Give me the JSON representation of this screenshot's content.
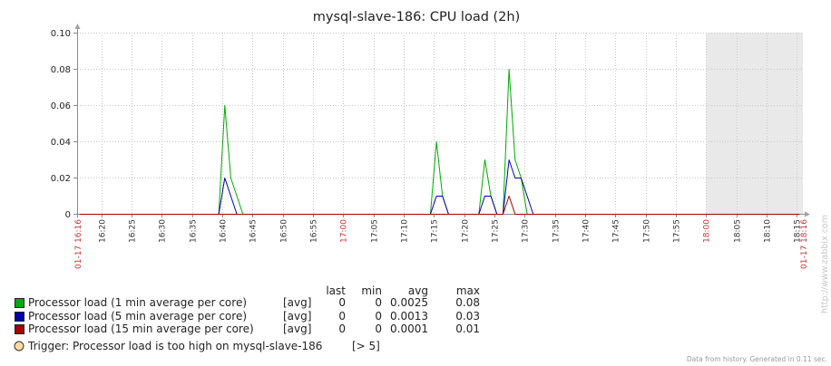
{
  "chart_data": {
    "type": "line",
    "title": "mysql-slave-186: CPU load (2h)",
    "xlim": [
      "01-17 16:16",
      "01-17 18:16"
    ],
    "x_ticks": [
      "16:20",
      "16:25",
      "16:30",
      "16:35",
      "16:40",
      "16:45",
      "16:50",
      "16:55",
      "17:00",
      "17:05",
      "17:10",
      "17:15",
      "17:20",
      "17:25",
      "17:30",
      "17:35",
      "17:40",
      "17:45",
      "17:50",
      "17:55",
      "18:00",
      "18:05",
      "18:10",
      "18:15"
    ],
    "ylim": [
      0,
      0.1
    ],
    "y_ticks": [
      "0.10",
      "0.08",
      "0.06",
      "0.04",
      "0.02",
      "0"
    ],
    "grid": true,
    "shaded_range": [
      "18:00",
      "18:16"
    ],
    "legend_position": "bottom-left",
    "legend_headers": [
      "last",
      "min",
      "avg",
      "max"
    ],
    "series": [
      {
        "name": "Processor load (1 min average per core)",
        "color": "#00aa00",
        "function": "[avg]",
        "last": "0",
        "min": "0",
        "avg": "0.0025",
        "max": "0.08",
        "points": [
          [
            "16:16:25",
            0
          ],
          [
            "16:39:25",
            0
          ],
          [
            "16:40:25",
            0.06
          ],
          [
            "16:41:25",
            0.02
          ],
          [
            "16:42:25",
            0.01
          ],
          [
            "16:43:25",
            0
          ],
          [
            "17:14:25",
            0
          ],
          [
            "17:15:25",
            0.04
          ],
          [
            "17:16:25",
            0.01
          ],
          [
            "17:17:25",
            0
          ],
          [
            "17:22:25",
            0
          ],
          [
            "17:23:25",
            0.03
          ],
          [
            "17:24:25",
            0.01
          ],
          [
            "17:25:25",
            0
          ],
          [
            "17:26:25",
            0
          ],
          [
            "17:27:25",
            0.08
          ],
          [
            "17:28:25",
            0.03
          ],
          [
            "17:29:25",
            0.02
          ],
          [
            "17:30:25",
            0
          ],
          [
            "18:15:25",
            0
          ]
        ]
      },
      {
        "name": "Processor load (5 min average per core)",
        "color": "#0000aa",
        "function": "[avg]",
        "last": "0",
        "min": "0",
        "avg": "0.0013",
        "max": "0.03",
        "points": [
          [
            "16:16:25",
            0
          ],
          [
            "16:39:25",
            0
          ],
          [
            "16:40:25",
            0.02
          ],
          [
            "16:41:25",
            0.01
          ],
          [
            "16:42:25",
            0
          ],
          [
            "17:14:25",
            0
          ],
          [
            "17:15:25",
            0.01
          ],
          [
            "17:16:25",
            0.01
          ],
          [
            "17:17:25",
            0
          ],
          [
            "17:22:25",
            0
          ],
          [
            "17:23:25",
            0.01
          ],
          [
            "17:24:25",
            0.01
          ],
          [
            "17:25:25",
            0
          ],
          [
            "17:26:25",
            0
          ],
          [
            "17:27:25",
            0.03
          ],
          [
            "17:28:25",
            0.02
          ],
          [
            "17:29:25",
            0.02
          ],
          [
            "17:30:25",
            0.01
          ],
          [
            "17:31:25",
            0
          ],
          [
            "18:15:25",
            0
          ]
        ]
      },
      {
        "name": "Processor load (15 min average per core)",
        "color": "#aa0000",
        "function": "[avg]",
        "last": "0",
        "min": "0",
        "avg": "0.0001",
        "max": "0.01",
        "points": [
          [
            "16:16:25",
            0
          ],
          [
            "17:26:25",
            0
          ],
          [
            "17:27:25",
            0.01
          ],
          [
            "17:28:25",
            0
          ],
          [
            "18:15:25",
            0
          ]
        ]
      }
    ],
    "trigger": {
      "label": "Trigger: Processor load is too high on mysql-slave-186",
      "threshold": "[> 5]",
      "color": "#ffdca0"
    }
  },
  "watermark": "http://www.zabbix.com",
  "footer_note": "Data from history. Generated in 0.11 sec."
}
